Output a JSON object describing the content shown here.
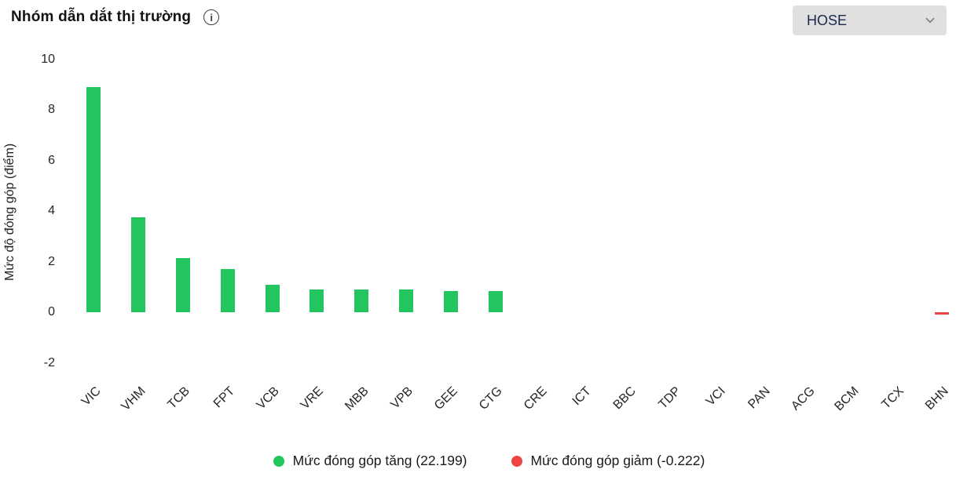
{
  "header": {
    "title": "Nhóm dẫn dắt thị trường"
  },
  "dropdown": {
    "value": "HOSE",
    "chevron_icon": "chevron-down-icon"
  },
  "icons": {
    "info": "info-icon"
  },
  "chart_data": {
    "type": "bar",
    "title": "Nhóm dẫn dắt thị trường",
    "ylabel": "Mức độ đóng góp (điểm)",
    "categories": [
      "VIC",
      "VHM",
      "TCB",
      "FPT",
      "VCB",
      "VRE",
      "MBB",
      "VPB",
      "GEE",
      "CTG",
      "CRE",
      "ICT",
      "BBC",
      "TDP",
      "VCI",
      "PAN",
      "ACG",
      "BCM",
      "TCX",
      "BHN"
    ],
    "values": [
      8.9,
      3.75,
      2.15,
      1.7,
      1.1,
      0.9,
      0.9,
      0.9,
      0.85,
      0.85,
      0,
      0,
      0,
      0,
      0,
      0,
      0,
      0,
      0,
      -0.1
    ],
    "yticks": [
      10,
      8,
      6,
      4,
      2,
      0,
      -2
    ],
    "ylim": [
      -2.6,
      10
    ],
    "grid": false,
    "positive_color": "#22c55e",
    "negative_color": "#ef4444",
    "legend_position": "bottom"
  },
  "legend": {
    "increase_label": "Mức đóng góp tăng (22.199)",
    "decrease_label": "Mức đóng góp giảm (-0.222)",
    "increase_total": "22.199",
    "decrease_total": "-0.222"
  }
}
